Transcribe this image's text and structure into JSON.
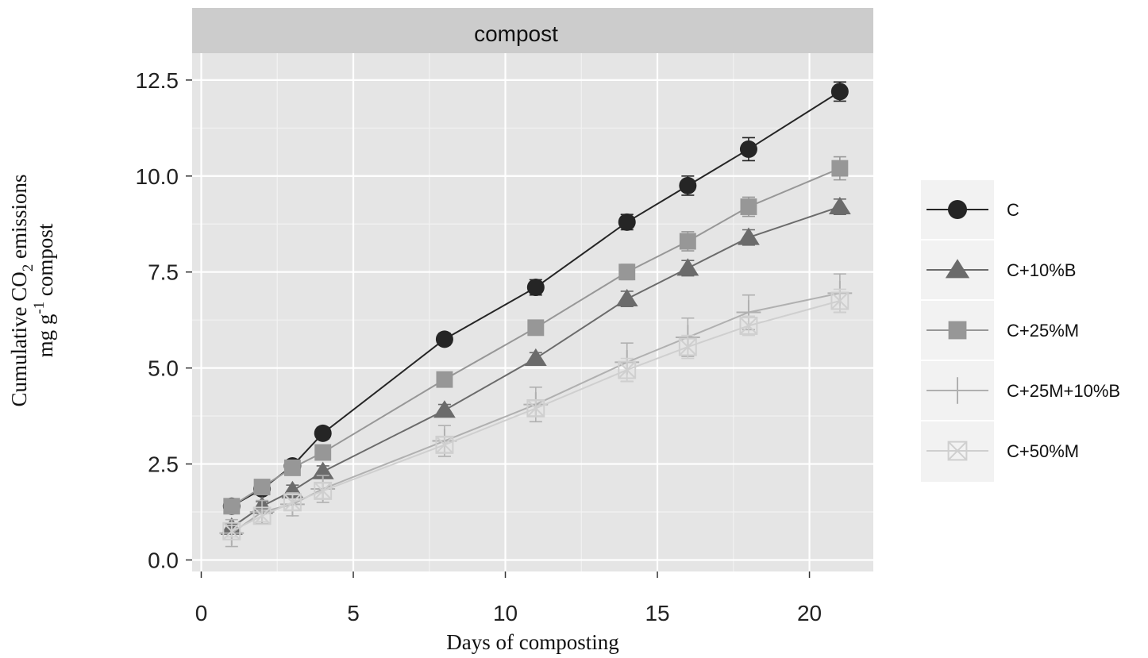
{
  "chart_data": {
    "type": "line",
    "facet_label": "compost",
    "xlabel": "Days of composting",
    "ylabel_parts": {
      "line1_pre": "Cumulative CO",
      "line1_sub": "2",
      "line1_post": " emissions",
      "line2_pre": "mg g",
      "line2_sup": "-1",
      "line2_post": " compost"
    },
    "xlim": [
      -0.3,
      22.1
    ],
    "ylim": [
      -0.3,
      13.2
    ],
    "x_ticks": [
      0,
      5,
      10,
      15,
      20
    ],
    "x_tick_labels": [
      "0",
      "5",
      "10",
      "15",
      "20"
    ],
    "y_ticks": [
      0,
      2.5,
      5,
      7.5,
      10,
      12.5
    ],
    "y_tick_labels": [
      "0.0",
      "2.5",
      "5.0",
      "7.5",
      "10.0",
      "12.5"
    ],
    "grid": true,
    "legend_position": "right",
    "x": [
      1,
      2,
      3,
      4,
      8,
      11,
      14,
      16,
      18,
      21
    ],
    "series": [
      {
        "name": "C",
        "marker": "circle",
        "color": "#252525",
        "values": [
          1.4,
          1.85,
          2.45,
          3.3,
          5.75,
          7.1,
          8.8,
          9.75,
          10.7,
          12.2
        ],
        "errors": [
          0.12,
          0.12,
          0.15,
          0.15,
          0.15,
          0.2,
          0.2,
          0.25,
          0.3,
          0.25
        ]
      },
      {
        "name": "C+10%B",
        "marker": "triangle",
        "color": "#6b6b6b",
        "values": [
          0.85,
          1.4,
          1.8,
          2.3,
          3.9,
          5.25,
          6.8,
          7.6,
          8.4,
          9.2
        ],
        "errors": [
          0.1,
          0.12,
          0.15,
          0.15,
          0.15,
          0.15,
          0.2,
          0.2,
          0.2,
          0.2
        ]
      },
      {
        "name": "C+25%M",
        "marker": "square",
        "color": "#979797",
        "values": [
          1.4,
          1.9,
          2.4,
          2.8,
          4.7,
          6.05,
          7.5,
          8.3,
          9.2,
          10.2
        ],
        "errors": [
          0.12,
          0.12,
          0.15,
          0.15,
          0.15,
          0.15,
          0.2,
          0.25,
          0.25,
          0.3
        ]
      },
      {
        "name": "C+25M+10%B",
        "marker": "plus",
        "color": "#b0b0b0",
        "values": [
          0.7,
          1.25,
          1.45,
          1.85,
          3.1,
          4.05,
          5.15,
          5.8,
          6.45,
          6.95
        ],
        "errors": [
          0.35,
          0.3,
          0.3,
          0.35,
          0.4,
          0.45,
          0.5,
          0.5,
          0.45,
          0.5
        ]
      },
      {
        "name": "C+50%M",
        "marker": "squarex",
        "color": "#cfcfcf",
        "values": [
          0.75,
          1.15,
          1.5,
          1.8,
          3.0,
          3.95,
          4.95,
          5.55,
          6.1,
          6.75
        ],
        "errors": [
          0.15,
          0.15,
          0.2,
          0.2,
          0.2,
          0.2,
          0.3,
          0.3,
          0.25,
          0.3
        ]
      }
    ]
  }
}
